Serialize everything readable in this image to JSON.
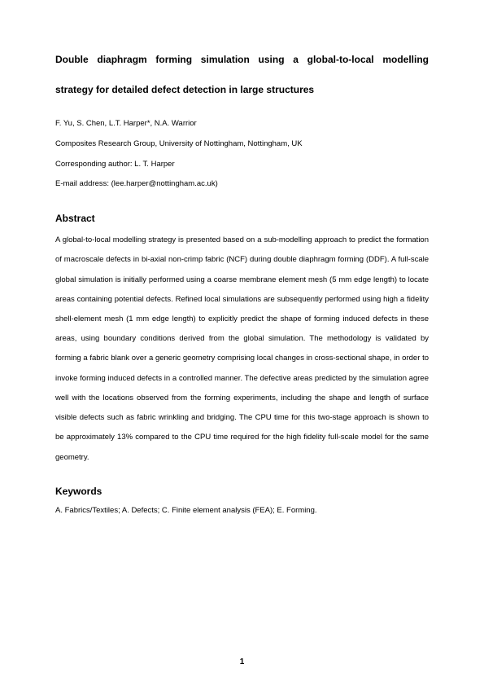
{
  "title_line1": "Double diaphragm forming simulation using a global-to-local modelling",
  "title_line2": "strategy for detailed defect detection in large structures",
  "authors": "F. Yu, S. Chen, L.T. Harper*, N.A. Warrior",
  "affiliation": "Composites Research Group, University of Nottingham, Nottingham, UK",
  "corresponding": "Corresponding author: L. T. Harper",
  "email": "E-mail address: (lee.harper@nottingham.ac.uk)",
  "abstract_heading": "Abstract",
  "abstract_body": "A global-to-local modelling strategy is presented based on a sub-modelling approach to predict the formation of macroscale defects in bi-axial non-crimp fabric (NCF) during double diaphragm forming (DDF). A full-scale global simulation is initially performed using a coarse membrane element mesh (5 mm edge length) to locate areas containing potential defects. Refined local simulations are subsequently performed using high a fidelity shell-element mesh (1 mm edge length) to explicitly predict the shape of forming induced defects in these areas, using boundary conditions derived from the global simulation. The methodology is validated by forming a fabric blank over a generic geometry comprising local changes in cross-sectional shape, in order to invoke forming induced defects in a controlled manner. The defective areas predicted by the simulation agree well with the locations observed from the forming experiments, including the shape and length of surface visible defects such as fabric wrinkling and bridging. The CPU time for this two-stage approach is shown to be approximately 13% compared to the CPU time required for the high fidelity full-scale model for the same geometry.",
  "keywords_heading": "Keywords",
  "keywords_body": "A. Fabrics/Textiles; A. Defects; C. Finite element analysis (FEA); E. Forming.",
  "page_number": "1"
}
